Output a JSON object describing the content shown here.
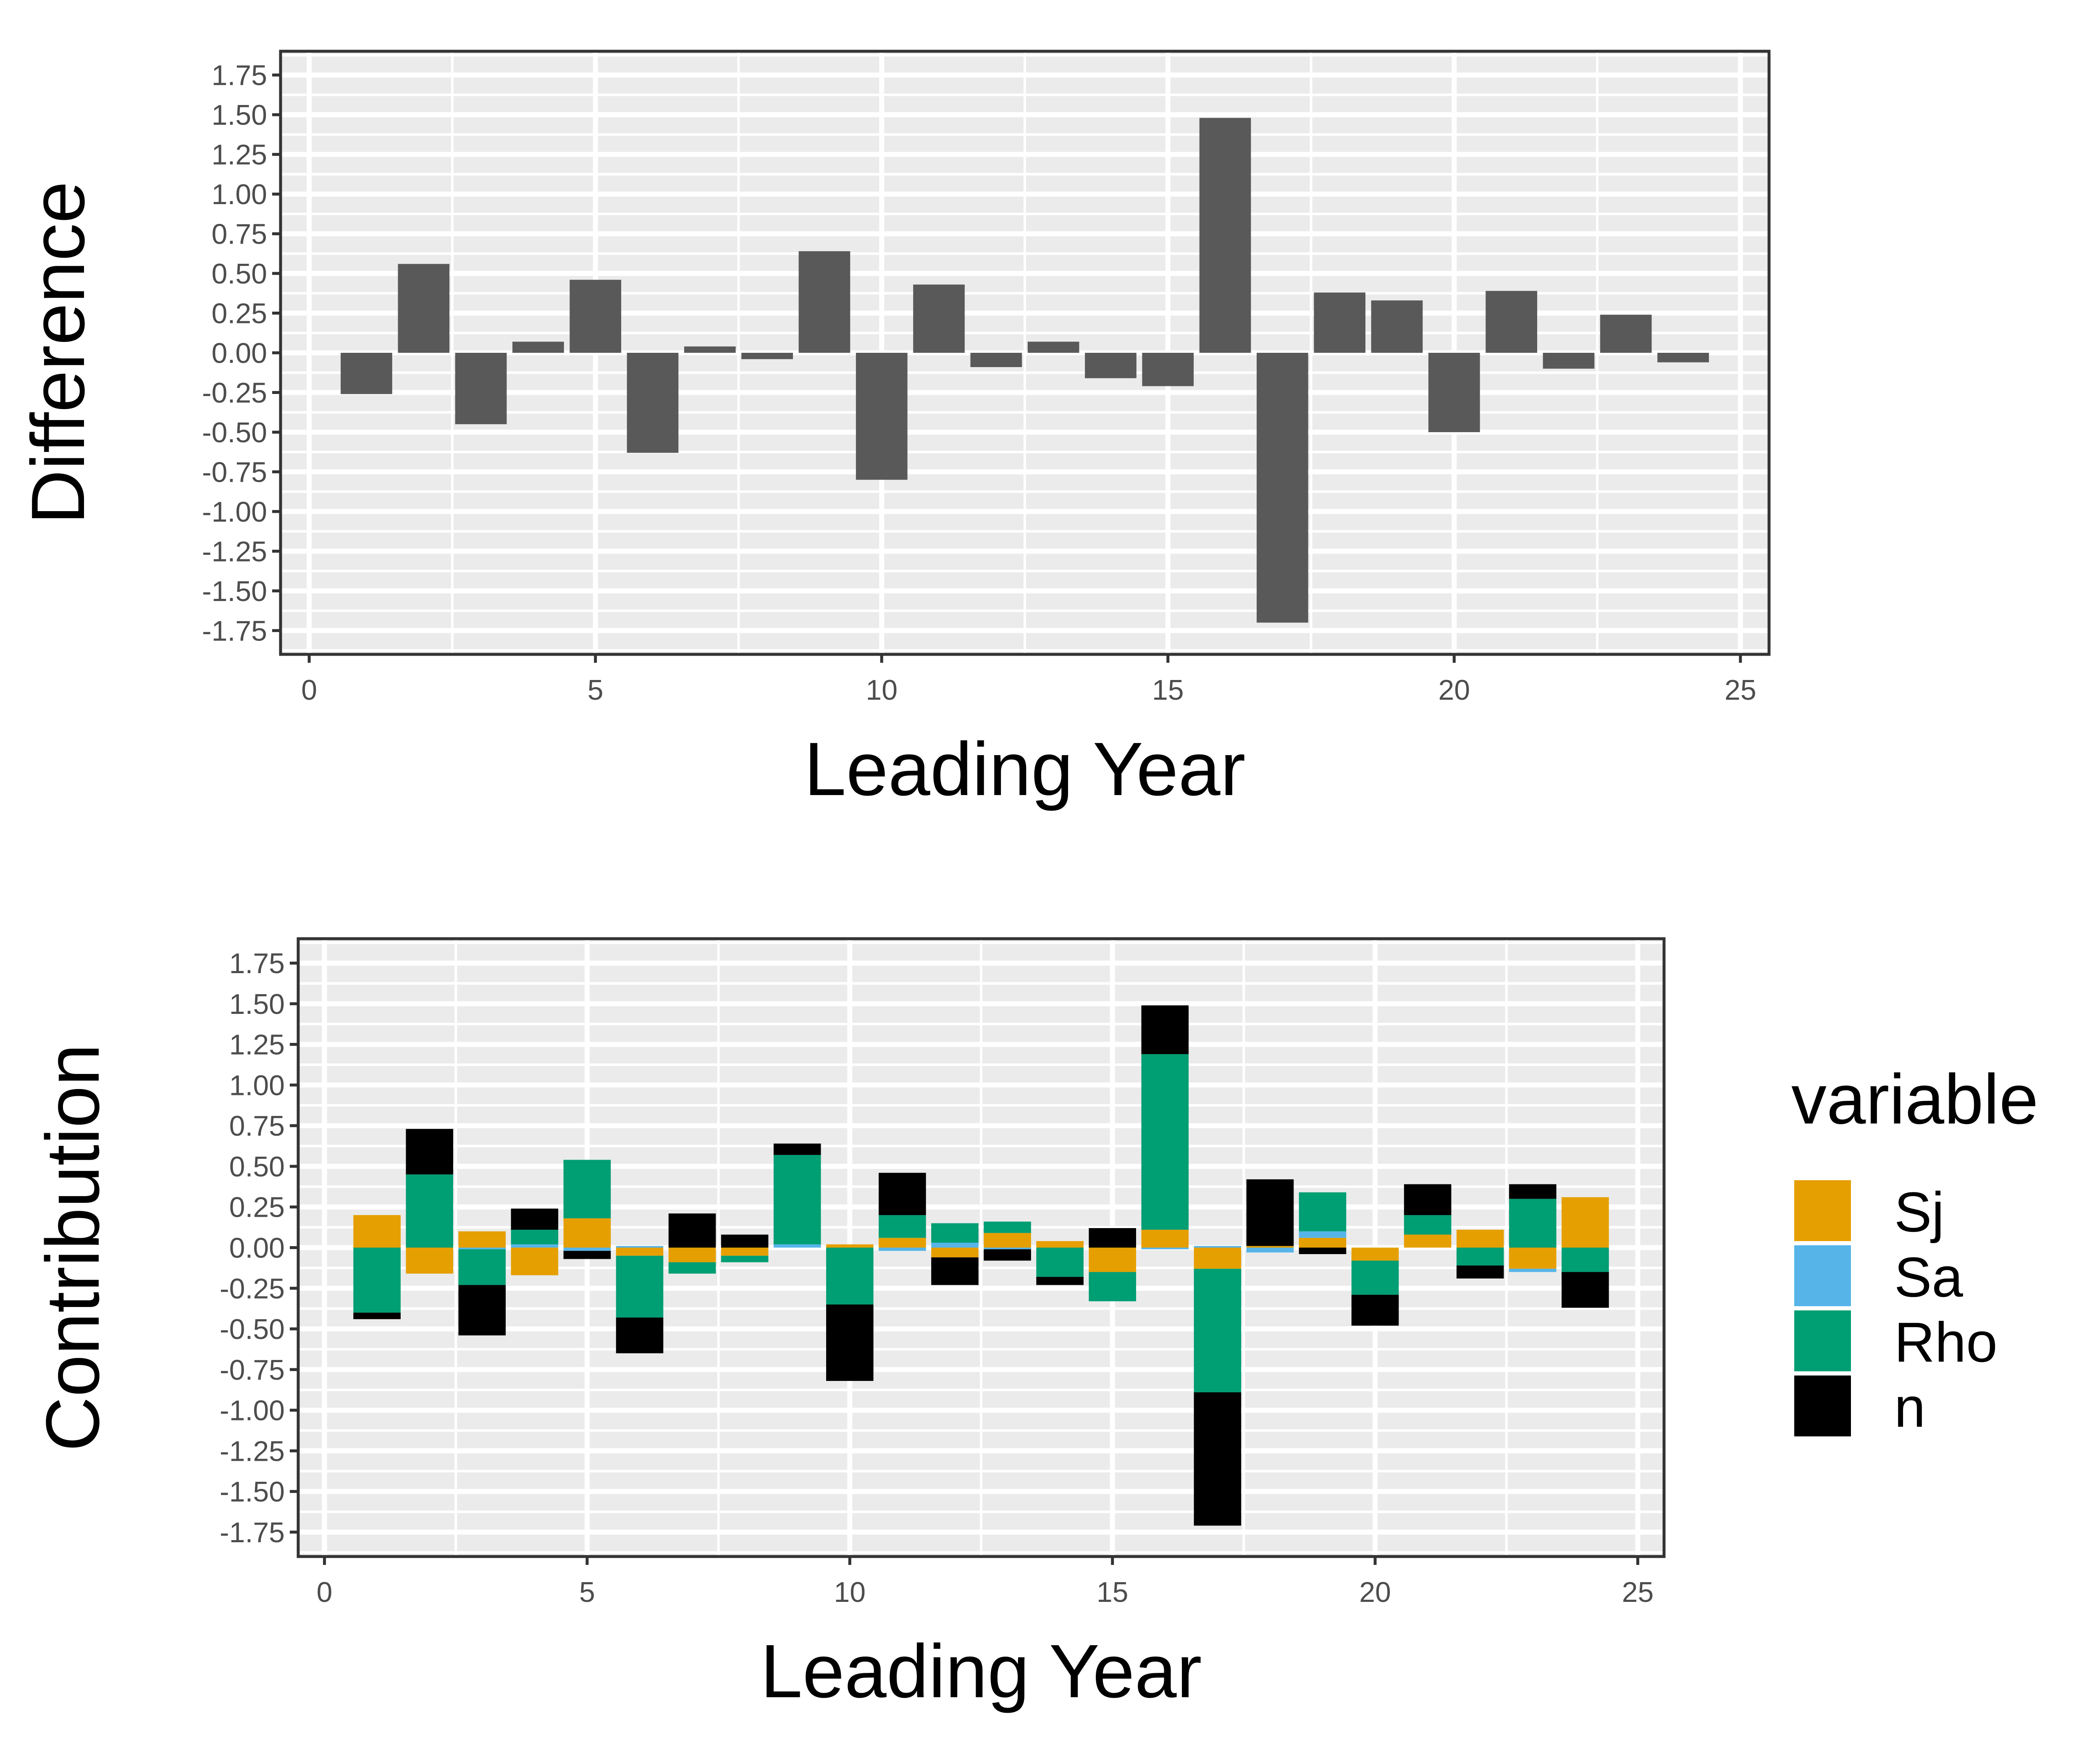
{
  "colors": {
    "panel_bg": "#EBEBEB",
    "grid": "#FFFFFF",
    "bar": "#595959",
    "axis_text": "#4D4D4D",
    "frame": "#333333"
  },
  "chart_data": [
    {
      "type": "bar",
      "xlabel": "Leading Year",
      "ylabel": "Difference",
      "xlim": [
        -0.5,
        25.5
      ],
      "ylim": [
        -1.9,
        1.9
      ],
      "x_ticks": [
        "0",
        "5",
        "10",
        "15",
        "20",
        "25"
      ],
      "y_ticks": [
        "1.75",
        "1.50",
        "1.25",
        "1.00",
        "0.75",
        "0.50",
        "0.25",
        "0.00",
        "-0.25",
        "-0.50",
        "-0.75",
        "-1.00",
        "-1.25",
        "-1.50",
        "-1.75"
      ],
      "grid": true,
      "x": [
        1,
        2,
        3,
        4,
        5,
        6,
        7,
        8,
        9,
        10,
        11,
        12,
        13,
        14,
        15,
        16,
        17,
        18,
        19,
        20,
        21,
        22,
        23,
        24
      ],
      "values": [
        -0.26,
        0.56,
        -0.45,
        0.07,
        0.46,
        -0.63,
        0.04,
        -0.04,
        0.64,
        -0.8,
        0.43,
        -0.09,
        0.07,
        -0.16,
        -0.21,
        1.48,
        -1.7,
        0.38,
        0.33,
        -0.5,
        0.39,
        -0.1,
        0.24,
        -0.06
      ],
      "color": "#595959"
    },
    {
      "type": "bar",
      "stacked": true,
      "xlabel": "Leading Year",
      "ylabel": "Contribution",
      "xlim": [
        -0.5,
        25.5
      ],
      "ylim": [
        -1.9,
        1.9
      ],
      "x_ticks": [
        "0",
        "5",
        "10",
        "15",
        "20",
        "25"
      ],
      "y_ticks": [
        "1.75",
        "1.50",
        "1.25",
        "1.00",
        "0.75",
        "0.50",
        "0.25",
        "0.00",
        "-0.25",
        "-0.50",
        "-0.75",
        "-1.00",
        "-1.25",
        "-1.50",
        "-1.75"
      ],
      "grid": true,
      "legend": {
        "title": "variable",
        "position": "right"
      },
      "x": [
        1,
        2,
        3,
        4,
        5,
        6,
        7,
        8,
        9,
        10,
        11,
        12,
        13,
        14,
        15,
        16,
        17,
        18,
        19,
        20,
        21,
        22,
        23,
        24
      ],
      "series": [
        {
          "name": "Sj",
          "color": "#E69F00",
          "values": [
            0.2,
            -0.16,
            0.1,
            -0.17,
            0.18,
            -0.05,
            -0.09,
            -0.05,
            0.0,
            0.02,
            0.06,
            -0.06,
            0.09,
            0.04,
            -0.15,
            0.11,
            -0.13,
            0.01,
            0.06,
            -0.08,
            0.08,
            0.11,
            -0.13,
            0.31
          ]
        },
        {
          "name": "Sa",
          "color": "#56B4E9",
          "values": [
            0.0,
            0.0,
            -0.01,
            0.02,
            -0.02,
            0.01,
            0.0,
            0.0,
            0.02,
            0.0,
            -0.02,
            0.03,
            -0.01,
            0.0,
            0.0,
            -0.01,
            0.01,
            -0.03,
            0.04,
            0.0,
            0.0,
            0.0,
            -0.02,
            0.0
          ]
        },
        {
          "name": "Rho",
          "color": "#009E73",
          "values": [
            -0.4,
            0.45,
            -0.22,
            0.09,
            0.36,
            -0.38,
            -0.07,
            -0.04,
            0.55,
            -0.35,
            0.14,
            0.12,
            0.07,
            -0.18,
            -0.18,
            1.08,
            -0.76,
            0.0,
            0.24,
            -0.21,
            0.12,
            -0.11,
            0.3,
            -0.15
          ]
        },
        {
          "name": "n",
          "color": "#000000",
          "values": [
            -0.04,
            0.28,
            -0.31,
            0.13,
            -0.05,
            -0.22,
            0.21,
            0.08,
            0.07,
            -0.47,
            0.26,
            -0.17,
            -0.07,
            -0.05,
            0.12,
            0.3,
            -0.82,
            0.41,
            -0.04,
            -0.19,
            0.19,
            -0.08,
            0.09,
            -0.22
          ]
        }
      ]
    }
  ]
}
